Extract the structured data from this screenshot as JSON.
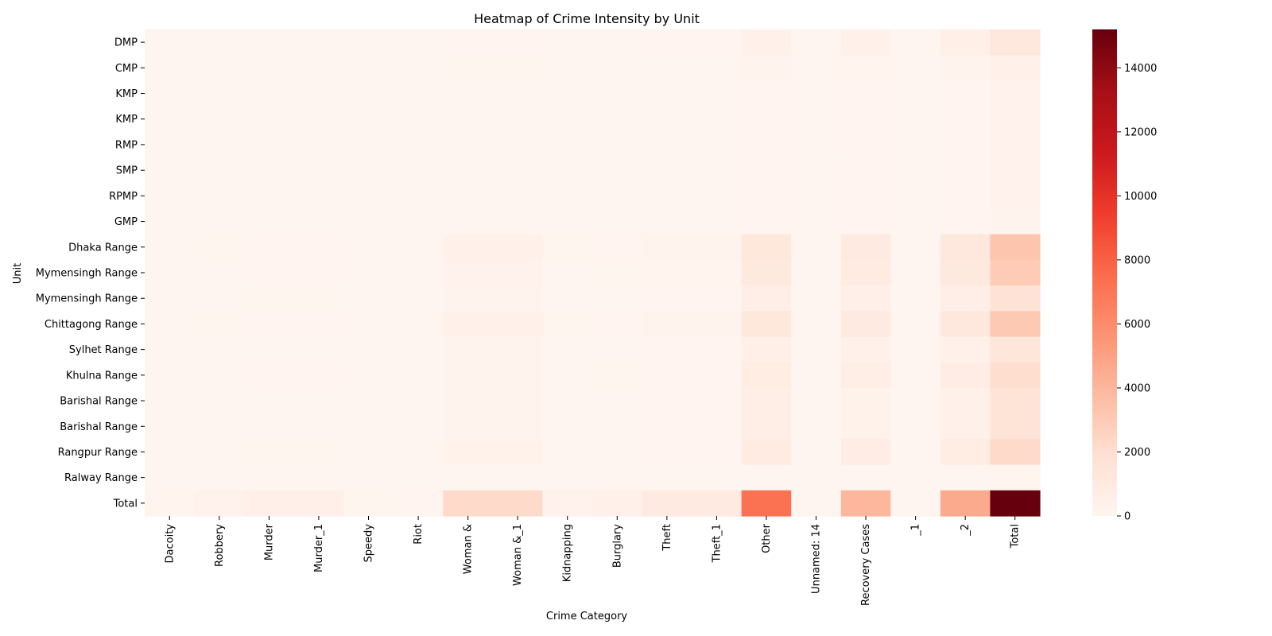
{
  "chart_data": {
    "type": "heatmap",
    "title": "Heatmap of Crime Intensity by Unit",
    "xlabel": "Crime Category",
    "ylabel": "Unit",
    "x_categories": [
      "Dacoity",
      "Robbery",
      "Murder",
      "Murder_1",
      "Speedy",
      "Riot",
      "Woman &",
      "Woman &_1",
      "Kidnapping",
      "Burglary",
      "Theft",
      "Theft_1",
      "Other",
      "Unnamed: 14",
      "Recovery Cases",
      "_1",
      "_2",
      "Total"
    ],
    "y_categories": [
      "DMP",
      "CMP",
      "KMP",
      "KMP",
      "RMP",
      "SMP",
      "RPMP",
      "GMP",
      "Dhaka Range",
      "Mymensingh Range",
      "Mymensingh Range",
      "Chittagong Range",
      "Sylhet Range",
      "Khulna Range",
      "Barishal Range",
      "Barishal Range",
      "Rangpur Range",
      "Ralway Range",
      "Total"
    ],
    "values": [
      [
        5,
        20,
        15,
        15,
        2,
        0,
        80,
        80,
        10,
        30,
        60,
        60,
        450,
        0,
        400,
        0,
        550,
        1250
      ],
      [
        2,
        8,
        10,
        10,
        1,
        0,
        40,
        40,
        5,
        15,
        30,
        30,
        150,
        0,
        120,
        0,
        160,
        450
      ],
      [
        1,
        3,
        5,
        5,
        1,
        0,
        20,
        20,
        3,
        8,
        15,
        15,
        80,
        0,
        60,
        0,
        80,
        230
      ],
      [
        1,
        3,
        5,
        5,
        1,
        0,
        20,
        20,
        3,
        8,
        15,
        15,
        80,
        0,
        60,
        0,
        80,
        230
      ],
      [
        1,
        3,
        5,
        5,
        1,
        0,
        20,
        20,
        3,
        8,
        15,
        15,
        80,
        0,
        60,
        0,
        80,
        230
      ],
      [
        1,
        3,
        5,
        5,
        1,
        0,
        20,
        20,
        3,
        8,
        15,
        15,
        80,
        0,
        60,
        0,
        80,
        230
      ],
      [
        1,
        3,
        5,
        5,
        1,
        0,
        20,
        20,
        3,
        8,
        15,
        15,
        80,
        0,
        60,
        0,
        80,
        230
      ],
      [
        1,
        2,
        4,
        4,
        1,
        0,
        15,
        15,
        2,
        6,
        12,
        12,
        60,
        0,
        50,
        0,
        60,
        180
      ],
      [
        20,
        40,
        80,
        80,
        5,
        10,
        350,
        350,
        40,
        60,
        150,
        150,
        1300,
        0,
        1000,
        0,
        1200,
        3300
      ],
      [
        15,
        30,
        60,
        60,
        4,
        8,
        250,
        250,
        30,
        40,
        100,
        100,
        1100,
        0,
        900,
        0,
        1100,
        3000
      ],
      [
        10,
        20,
        40,
        40,
        3,
        5,
        180,
        180,
        20,
        30,
        80,
        80,
        600,
        0,
        500,
        0,
        600,
        1700
      ],
      [
        20,
        40,
        80,
        80,
        5,
        10,
        400,
        400,
        40,
        60,
        150,
        150,
        1300,
        0,
        1000,
        0,
        1200,
        3100
      ],
      [
        8,
        15,
        30,
        30,
        2,
        4,
        150,
        150,
        15,
        25,
        60,
        60,
        550,
        0,
        350,
        0,
        450,
        1400
      ],
      [
        12,
        25,
        50,
        50,
        3,
        6,
        200,
        200,
        25,
        35,
        80,
        80,
        800,
        0,
        650,
        0,
        700,
        2000
      ],
      [
        8,
        15,
        30,
        30,
        2,
        4,
        150,
        150,
        15,
        25,
        60,
        60,
        650,
        0,
        300,
        0,
        400,
        1600
      ],
      [
        8,
        15,
        30,
        30,
        2,
        4,
        150,
        150,
        15,
        25,
        60,
        60,
        650,
        0,
        300,
        0,
        400,
        1600
      ],
      [
        10,
        20,
        40,
        40,
        3,
        5,
        300,
        300,
        20,
        30,
        80,
        80,
        900,
        0,
        700,
        0,
        800,
        2200
      ],
      [
        0,
        1,
        2,
        2,
        0,
        0,
        5,
        5,
        1,
        2,
        5,
        5,
        30,
        0,
        20,
        0,
        30,
        100
      ],
      [
        130,
        250,
        500,
        500,
        40,
        60,
        2200,
        2200,
        250,
        400,
        1000,
        1000,
        7200,
        0,
        4000,
        0,
        4600,
        15200
      ]
    ],
    "colorbar": {
      "min": 0,
      "max": 15200,
      "ticks": [
        0,
        2000,
        4000,
        6000,
        8000,
        10000,
        12000,
        14000
      ],
      "colormap": [
        "#fff5f0",
        "#fee0d2",
        "#fcbba1",
        "#fc9272",
        "#fb6a4a",
        "#ef3b2c",
        "#cb181d",
        "#a50f15",
        "#67000d"
      ]
    },
    "grid": false,
    "legend": "colorbar-right"
  }
}
